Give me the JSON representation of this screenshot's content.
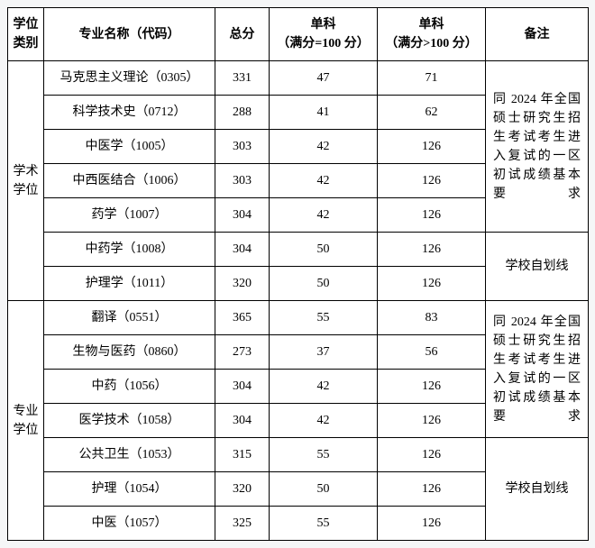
{
  "headers": {
    "category": "学位类别",
    "name": "专业名称（代码）",
    "total": "总分",
    "single1_l1": "单科",
    "single1_l2": "（满分=100 分）",
    "single2_l1": "单科",
    "single2_l2": "（满分>100 分）",
    "note": "备注"
  },
  "categories": {
    "academic": "学术学位",
    "professional": "专业学位"
  },
  "notes": {
    "national": "同 2024 年全国硕士研究生招生考试考生进入复试的一区初试成绩基本要求",
    "school": "学校自划线"
  },
  "rows": {
    "r1": {
      "name": "马克思主义理论（0305）",
      "total": "331",
      "s1": "47",
      "s2": "71"
    },
    "r2": {
      "name": "科学技术史（0712）",
      "total": "288",
      "s1": "41",
      "s2": "62"
    },
    "r3": {
      "name": "中医学（1005）",
      "total": "303",
      "s1": "42",
      "s2": "126"
    },
    "r4": {
      "name": "中西医结合（1006）",
      "total": "303",
      "s1": "42",
      "s2": "126"
    },
    "r5": {
      "name": "药学（1007）",
      "total": "304",
      "s1": "42",
      "s2": "126"
    },
    "r6": {
      "name": "中药学（1008）",
      "total": "304",
      "s1": "50",
      "s2": "126"
    },
    "r7": {
      "name": "护理学（1011）",
      "total": "320",
      "s1": "50",
      "s2": "126"
    },
    "r8": {
      "name": "翻译（0551）",
      "total": "365",
      "s1": "55",
      "s2": "83"
    },
    "r9": {
      "name": "生物与医药（0860）",
      "total": "273",
      "s1": "37",
      "s2": "56"
    },
    "r10": {
      "name": "中药（1056）",
      "total": "304",
      "s1": "42",
      "s2": "126"
    },
    "r11": {
      "name": "医学技术（1058）",
      "total": "304",
      "s1": "42",
      "s2": "126"
    },
    "r12": {
      "name": "公共卫生（1053）",
      "total": "315",
      "s1": "55",
      "s2": "126"
    },
    "r13": {
      "name": "护理（1054）",
      "total": "320",
      "s1": "50",
      "s2": "126"
    },
    "r14": {
      "name": "中医（1057）",
      "total": "325",
      "s1": "55",
      "s2": "126"
    }
  }
}
